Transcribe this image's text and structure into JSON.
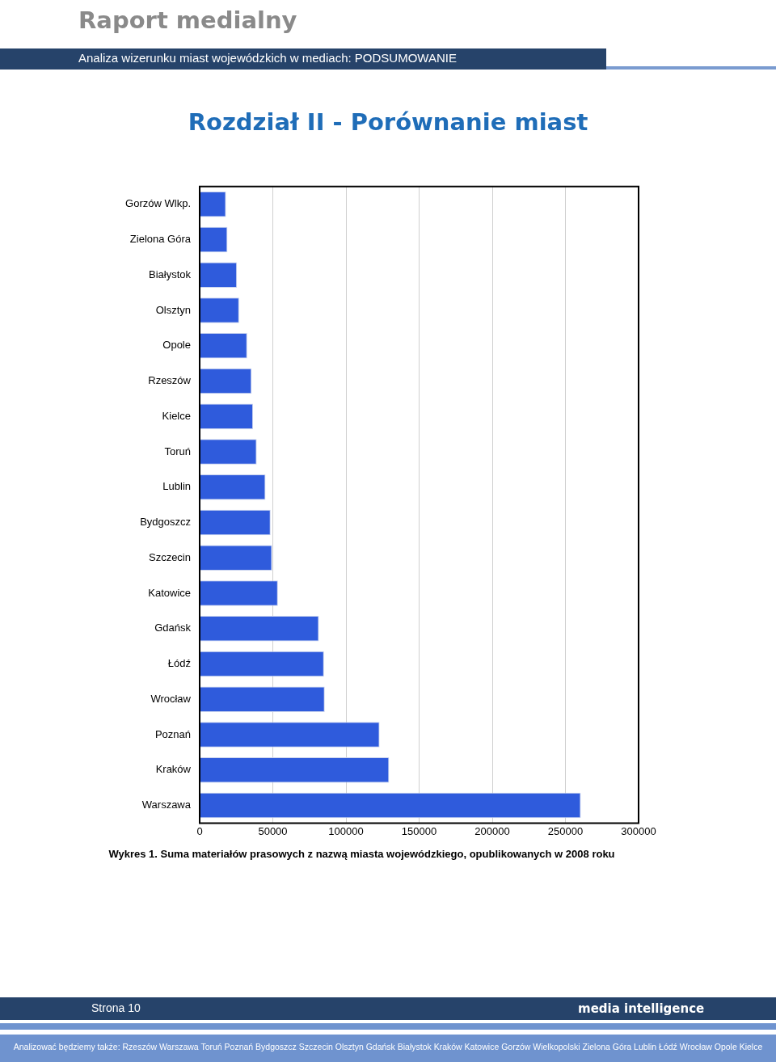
{
  "chart_data": {
    "type": "bar",
    "orientation": "horizontal",
    "title": "Rozdział II - Porównanie miast",
    "categories": [
      "Gorzów Wlkp.",
      "Zielona Góra",
      "Białystok",
      "Olsztyn",
      "Opole",
      "Rzeszów",
      "Kielce",
      "Toruń",
      "Lublin",
      "Bydgoszcz",
      "Szczecin",
      "Katowice",
      "Gdańsk",
      "Łódź",
      "Wrocław",
      "Poznań",
      "Kraków",
      "Warszawa"
    ],
    "values": [
      18000,
      19000,
      25500,
      27000,
      32500,
      35500,
      36500,
      39000,
      45000,
      48500,
      49500,
      53500,
      81500,
      85000,
      85500,
      123000,
      129500,
      260500
    ],
    "color": "#2f5bdc",
    "xlim": [
      0,
      300000
    ],
    "xticks": [
      0,
      50000,
      100000,
      150000,
      200000,
      250000,
      300000
    ],
    "grid": "x",
    "legend": false,
    "annotations": [
      "Raport medialny",
      "Analiza wizerunku miast wojewódzkich w mediach: PODSUMOWANIE",
      "Wykres 1. Suma materiałów prasowych z nazwą miasta wojewódzkiego, opublikowanych w 2008 roku",
      "Strona   10",
      "media intelligence",
      "Analizować będziemy także: Rzeszów Warszawa Toruń Poznań Bydgoszcz Szczecin Olsztyn Gdańsk Białystok Kraków Katowice Gorzów Wielkopolski Zielona Góra Lublin Łódź Wrocław Opole Kielce"
    ]
  }
}
